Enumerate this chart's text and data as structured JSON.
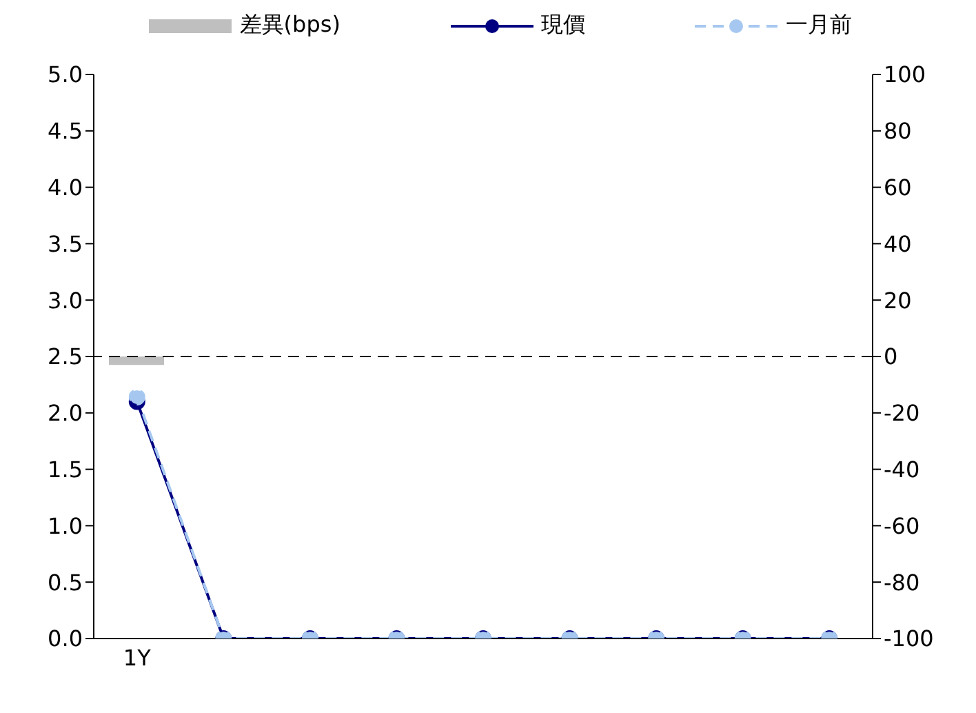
{
  "chart_data": {
    "type": "line",
    "categories": [
      "1Y",
      null,
      null,
      null,
      null,
      null,
      null,
      null,
      null
    ],
    "series": [
      {
        "name": "差異(bps)",
        "type": "bar",
        "axis": "y2",
        "color": "#bfbfbf",
        "values": [
          -3,
          null,
          null,
          null,
          null,
          null,
          null,
          null,
          null
        ]
      },
      {
        "name": "現價",
        "color": "#000080",
        "line_style": "solid",
        "marker": "circle",
        "values": [
          2.1,
          0,
          0,
          0,
          0,
          0,
          0,
          0,
          0
        ]
      },
      {
        "name": "一月前",
        "color": "#a6c8f0",
        "line_style": "dashed",
        "marker": "circle",
        "values": [
          2.14,
          0,
          0,
          0,
          0,
          0,
          0,
          0,
          0
        ]
      }
    ],
    "ylim": [
      0,
      5
    ],
    "yticks": [
      {
        "value": 0,
        "label": "0.0"
      },
      {
        "value": 0.5,
        "label": "0.5"
      },
      {
        "value": 1,
        "label": "1.0"
      },
      {
        "value": 1.5,
        "label": "1.5"
      },
      {
        "value": 2,
        "label": "2.0"
      },
      {
        "value": 2.5,
        "label": "2.5"
      },
      {
        "value": 3,
        "label": "3.0"
      },
      {
        "value": 3.5,
        "label": "3.5"
      },
      {
        "value": 4,
        "label": "4.0"
      },
      {
        "value": 4.5,
        "label": "4.5"
      },
      {
        "value": 5,
        "label": "5.0"
      }
    ],
    "y2lim": [
      -100,
      100
    ],
    "y2ticks": [
      -100,
      -80,
      -60,
      -40,
      -20,
      0,
      20,
      40,
      60,
      80,
      100
    ],
    "ref_lines": [
      {
        "axis": "y2",
        "value": 0,
        "color": "#000000",
        "line_style": "dashed"
      }
    ],
    "grid": false,
    "legend": "top"
  }
}
